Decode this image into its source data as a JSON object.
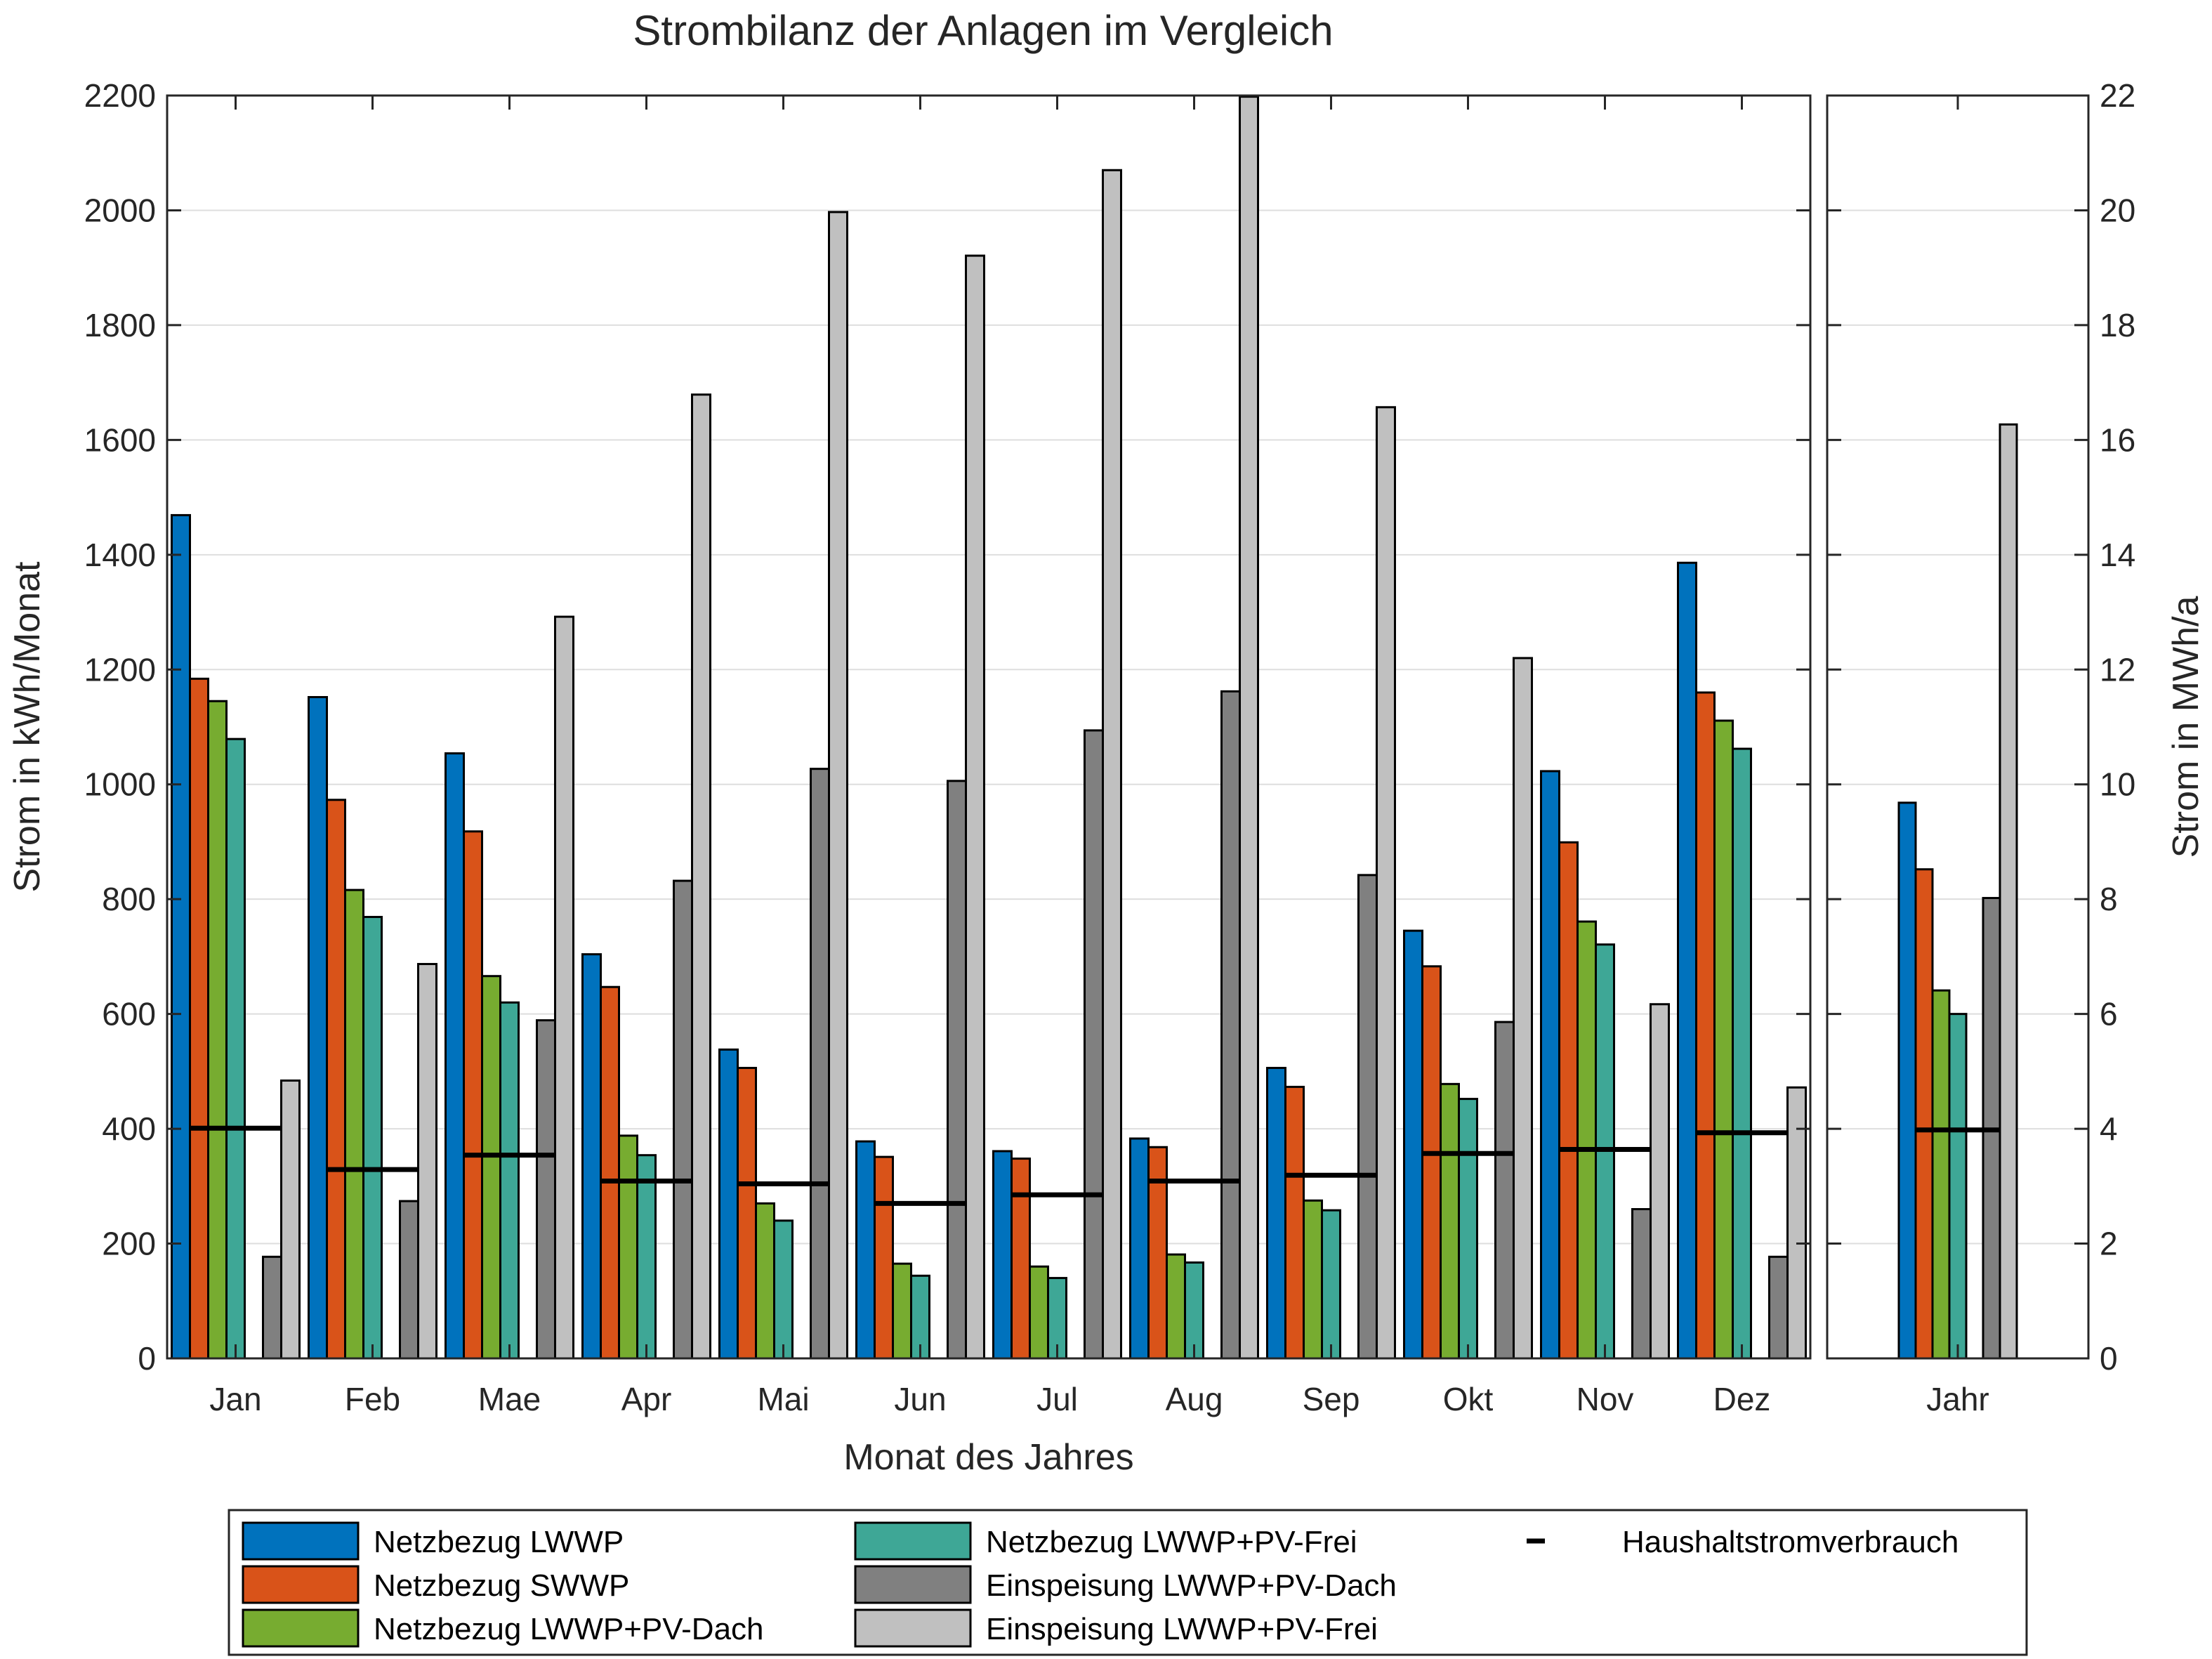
{
  "chart_data": [
    {
      "type": "bar",
      "title": "Strombilanz der Anlagen im Vergleich",
      "xlabel": "Monat des Jahres",
      "ylabel": "Strom in kWh/Monat",
      "ylim": [
        0,
        2200
      ],
      "yticks": [
        "0",
        "200",
        "400",
        "600",
        "800",
        "1000",
        "1200",
        "1400",
        "1600",
        "1800",
        "2000",
        "2200"
      ],
      "grid": true,
      "categories": [
        "Jan",
        "Feb",
        "Mae",
        "Apr",
        "Mai",
        "Jun",
        "Jul",
        "Aug",
        "Sep",
        "Okt",
        "Nov",
        "Dez"
      ],
      "series": [
        {
          "name": "Netzbezug LWWP",
          "color": "#0072BD",
          "values": [
            1469,
            1152,
            1054,
            704,
            538,
            378,
            361,
            383,
            506,
            745,
            1023,
            1386
          ]
        },
        {
          "name": "Netzbezug SWWP",
          "color": "#D95319",
          "values": [
            1184,
            973,
            918,
            647,
            506,
            351,
            348,
            368,
            473,
            683,
            899,
            1160
          ]
        },
        {
          "name": "Netzbezug LWWP+PV-Dach",
          "color": "#77AC30",
          "values": [
            1145,
            816,
            666,
            388,
            270,
            165,
            160,
            181,
            275,
            478,
            761,
            1111
          ]
        },
        {
          "name": "Netzbezug LWWP+PV-Frei",
          "color": "#3EA796",
          "values": [
            1079,
            769,
            620,
            354,
            240,
            144,
            140,
            167,
            258,
            452,
            721,
            1062
          ]
        },
        {
          "name": "Einspeisung LWWP+PV-Dach",
          "color": "#808080",
          "values": [
            177,
            274,
            589,
            832,
            1027,
            1006,
            1094,
            1162,
            842,
            586,
            260,
            177
          ]
        },
        {
          "name": "Einspeisung LWWP+PV-Frei",
          "color": "#C0C0C0",
          "values": [
            484,
            687,
            1292,
            1679,
            1997,
            1921,
            2070,
            2198,
            1657,
            1220,
            617,
            472
          ]
        }
      ],
      "household": {
        "name": "Haushaltstromverbrauch",
        "color": "#000000",
        "values": [
          401,
          329,
          354,
          309,
          304,
          270,
          285,
          309,
          319,
          357,
          364,
          393
        ]
      }
    },
    {
      "type": "bar",
      "ylabel": "Strom in MWh/a",
      "ylim": [
        0,
        22
      ],
      "yticks": [
        "0",
        "2",
        "4",
        "6",
        "8",
        "10",
        "12",
        "14",
        "16",
        "18",
        "20",
        "22"
      ],
      "grid": true,
      "categories": [
        "Jahr"
      ],
      "series": [
        {
          "name": "Netzbezug LWWP",
          "color": "#0072BD",
          "values": [
            9.68
          ]
        },
        {
          "name": "Netzbezug SWWP",
          "color": "#D95319",
          "values": [
            8.52
          ]
        },
        {
          "name": "Netzbezug LWWP+PV-Dach",
          "color": "#77AC30",
          "values": [
            6.41
          ]
        },
        {
          "name": "Netzbezug LWWP+PV-Frei",
          "color": "#3EA796",
          "values": [
            6.0
          ]
        },
        {
          "name": "Einspeisung LWWP+PV-Dach",
          "color": "#808080",
          "values": [
            8.02
          ]
        },
        {
          "name": "Einspeisung LWWP+PV-Frei",
          "color": "#C0C0C0",
          "values": [
            16.27
          ]
        }
      ],
      "household": {
        "name": "Haushaltstromverbrauch",
        "color": "#000000",
        "values": [
          3.98
        ]
      }
    }
  ],
  "legend": {
    "placement": "bottom",
    "entries": [
      {
        "label": "Netzbezug LWWP",
        "color": "#0072BD",
        "kind": "bar"
      },
      {
        "label": "Netzbezug SWWP",
        "color": "#D95319",
        "kind": "bar"
      },
      {
        "label": "Netzbezug LWWP+PV-Dach",
        "color": "#77AC30",
        "kind": "bar"
      },
      {
        "label": "Netzbezug LWWP+PV-Frei",
        "color": "#3EA796",
        "kind": "bar"
      },
      {
        "label": "Einspeisung LWWP+PV-Dach",
        "color": "#808080",
        "kind": "bar"
      },
      {
        "label": "Einspeisung LWWP+PV-Frei",
        "color": "#C0C0C0",
        "kind": "bar"
      },
      {
        "label": "Haushaltstromverbrauch",
        "color": "#000000",
        "kind": "line"
      }
    ]
  }
}
